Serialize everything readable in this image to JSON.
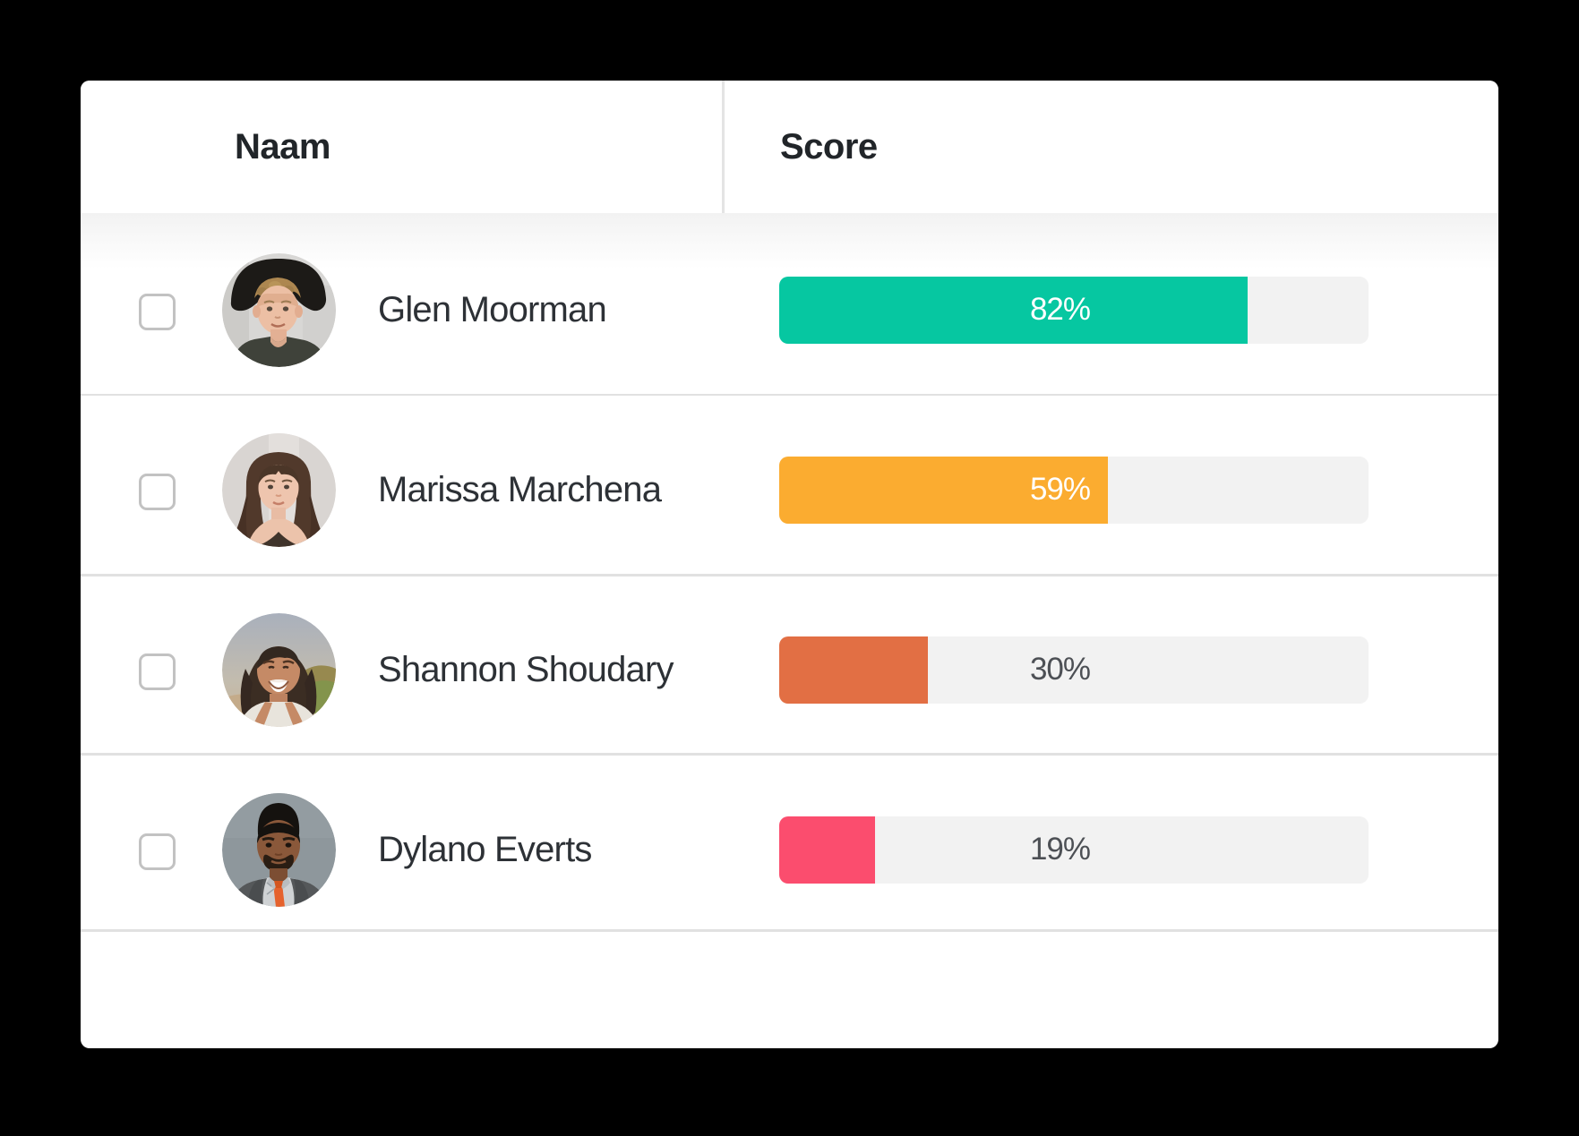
{
  "page": {
    "background": "#000000",
    "card_background": "#ffffff"
  },
  "colors": {
    "header_text": "#212529",
    "name_text": "#2d3136",
    "separator": "#e1e1e1",
    "column_divider": "#e4e4e4",
    "checkbox_border": "#c2c2c2",
    "bar_track": "#f2f2f2",
    "header_shadow_gradient_start": "#f2f2f2"
  },
  "table": {
    "columns": [
      {
        "label": "Naam"
      },
      {
        "label": "Score"
      }
    ],
    "rows": [
      {
        "name": "Glen Moorman",
        "score_label": "82%",
        "score_value": 82,
        "bar_fill_percent": 79.5,
        "bar_color": "#06c7a1",
        "label_color": "#ffffff",
        "checkbox_checked": false,
        "avatar": "man with black hat and curly blond hair"
      },
      {
        "name": "Marissa Marchena",
        "score_label": "59%",
        "score_value": 59,
        "bar_fill_percent": 55.8,
        "bar_color": "#fbac30",
        "label_color": "#ffffff",
        "checkbox_checked": false,
        "avatar": "woman with long brown hair"
      },
      {
        "name": "Shannon Shoudary",
        "score_label": "30%",
        "score_value": 30,
        "bar_fill_percent": 25.3,
        "bar_color": "#e26f44",
        "label_color": "#4d5055",
        "checkbox_checked": false,
        "avatar": "smiling woman with dark curly hair outdoors"
      },
      {
        "name": "Dylano Everts",
        "score_label": "19%",
        "score_value": 19,
        "bar_fill_percent": 16.3,
        "bar_color": "#fb4d6e",
        "label_color": "#4d5055",
        "checkbox_checked": false,
        "avatar": "man in gray suit with orange tie"
      }
    ]
  }
}
